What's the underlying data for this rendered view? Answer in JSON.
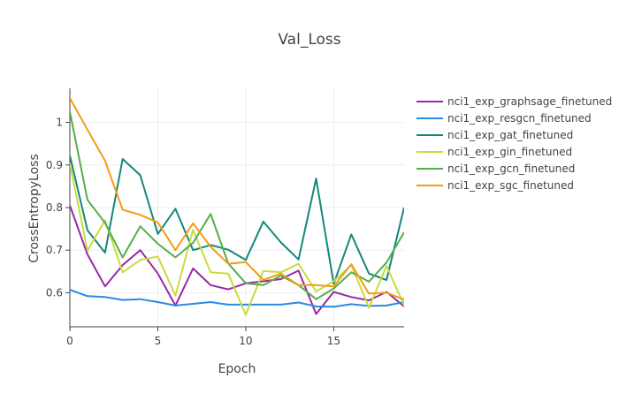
{
  "chart_data": {
    "type": "line",
    "title": "Val_Loss",
    "xlabel": "Epoch",
    "ylabel": "CrossEntropyLoss",
    "xlim": [
      0,
      19
    ],
    "ylim": [
      0.52,
      1.08
    ],
    "xticks": [
      0,
      5,
      10,
      15
    ],
    "yticks": [
      0.6,
      0.7,
      0.8,
      0.9,
      1
    ],
    "ytick_labels": [
      "0.6",
      "0.7",
      "0.8",
      "0.9",
      "1"
    ],
    "grid": true,
    "legend_position": "right",
    "x": [
      0,
      1,
      2,
      3,
      4,
      5,
      6,
      7,
      8,
      9,
      10,
      11,
      12,
      13,
      14,
      15,
      16,
      17,
      18,
      19
    ],
    "series": [
      {
        "name": "nci1_exp_graphsage_finetuned",
        "color": "#9a27a8",
        "values": [
          0.805,
          0.69,
          0.615,
          0.665,
          0.7,
          0.645,
          0.57,
          0.657,
          0.618,
          0.608,
          0.622,
          0.627,
          0.632,
          0.652,
          0.55,
          0.602,
          0.59,
          0.582,
          0.602,
          0.568
        ]
      },
      {
        "name": "nci1_exp_resgcn_finetuned",
        "color": "#2a8ae2",
        "values": [
          0.607,
          0.592,
          0.59,
          0.583,
          0.585,
          0.578,
          0.57,
          0.574,
          0.578,
          0.572,
          0.572,
          0.572,
          0.572,
          0.577,
          0.568,
          0.567,
          0.573,
          0.569,
          0.57,
          0.578
        ]
      },
      {
        "name": "nci1_exp_gat_finetuned",
        "color": "#14877a",
        "values": [
          0.922,
          0.747,
          0.694,
          0.914,
          0.876,
          0.738,
          0.797,
          0.7,
          0.712,
          0.701,
          0.677,
          0.767,
          0.718,
          0.678,
          0.868,
          0.621,
          0.737,
          0.645,
          0.63,
          0.8
        ]
      },
      {
        "name": "nci1_exp_gin_finetuned",
        "color": "#c8dc3c",
        "values": [
          0.904,
          0.699,
          0.77,
          0.648,
          0.677,
          0.685,
          0.593,
          0.748,
          0.648,
          0.645,
          0.548,
          0.651,
          0.648,
          0.668,
          0.603,
          0.627,
          0.665,
          0.565,
          0.663,
          0.57
        ]
      },
      {
        "name": "nci1_exp_gcn_finetuned",
        "color": "#55ad4b",
        "values": [
          1.025,
          0.818,
          0.764,
          0.683,
          0.756,
          0.715,
          0.683,
          0.717,
          0.785,
          0.669,
          0.622,
          0.618,
          0.64,
          0.618,
          0.585,
          0.61,
          0.648,
          0.626,
          0.671,
          0.742
        ]
      },
      {
        "name": "nci1_exp_sgc_finetuned",
        "color": "#f39c14",
        "values": [
          1.057,
          0.983,
          0.91,
          0.795,
          0.783,
          0.765,
          0.7,
          0.763,
          0.708,
          0.668,
          0.672,
          0.63,
          0.645,
          0.618,
          0.618,
          0.615,
          0.667,
          0.598,
          0.6,
          0.584
        ]
      }
    ]
  }
}
